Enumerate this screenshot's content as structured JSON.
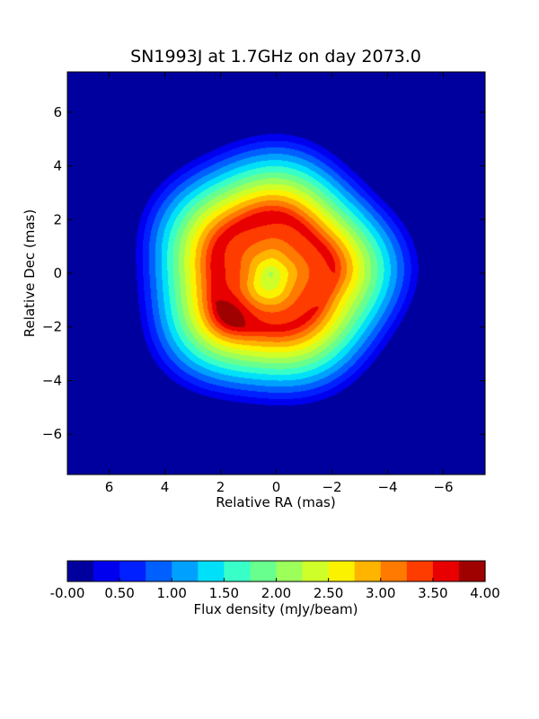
{
  "chart_data": {
    "type": "heatmap",
    "title": "SN1993J at 1.7GHz on day 2073.0",
    "xlabel": "Relative RA (mas)",
    "ylabel": "Relative Dec (mas)",
    "xlim": [
      7.5,
      -7.5
    ],
    "ylim": [
      -7.5,
      7.5
    ],
    "x_ticks": [
      6,
      4,
      2,
      0,
      -2,
      -4,
      -6
    ],
    "x_tick_labels": [
      "6",
      "4",
      "2",
      "0",
      "−2",
      "−4",
      "−6"
    ],
    "y_ticks": [
      6,
      4,
      2,
      0,
      -2,
      -4,
      -6
    ],
    "y_tick_labels": [
      "6",
      "4",
      "2",
      "0",
      "−2",
      "−4",
      "−6"
    ],
    "grid": false,
    "colorbar": {
      "label": "Flux density (mJy/beam)",
      "range": [
        0,
        4
      ],
      "ticks": [
        0,
        0.5,
        1,
        1.5,
        2,
        2.5,
        3,
        3.5,
        4
      ],
      "tick_labels": [
        "-0.00",
        "0.50",
        "1.00",
        "1.50",
        "2.00",
        "2.50",
        "3.00",
        "3.50",
        "4.00"
      ],
      "levels": [
        0,
        0.25,
        0.5,
        0.75,
        1.0,
        1.25,
        1.5,
        1.75,
        2.0,
        2.25,
        2.5,
        2.75,
        3.0,
        3.25,
        3.5,
        3.75,
        4.0
      ],
      "colors": [
        "#00009f",
        "#0000ef",
        "#0020ff",
        "#0060ff",
        "#00a0ff",
        "#00e0f8",
        "#38ffc8",
        "#68ff8e",
        "#9cff5a",
        "#cfff28",
        "#fbf200",
        "#ffb400",
        "#ff7a00",
        "#ff3c00",
        "#e80000",
        "#9f0000"
      ]
    },
    "background_color": "#00009f",
    "structure": {
      "shell_center": [
        0.2,
        0.0
      ],
      "shell_outer_radius": 5.3,
      "ridge_radius": 2.2,
      "ridge_width": 1.0,
      "ridge_peak": 3.55,
      "peaks": [
        {
          "ra": 1.7,
          "dec": -1.6,
          "value": 4.0
        },
        {
          "ra": 1.3,
          "dec": 0.2,
          "value": 3.65
        },
        {
          "ra": 0.5,
          "dec": 2.0,
          "value": 3.6
        },
        {
          "ra": -2.2,
          "dec": -0.8,
          "value": 3.4
        }
      ],
      "central_min": {
        "ra": -0.2,
        "dec": 0.0,
        "value": 2.3
      }
    }
  }
}
